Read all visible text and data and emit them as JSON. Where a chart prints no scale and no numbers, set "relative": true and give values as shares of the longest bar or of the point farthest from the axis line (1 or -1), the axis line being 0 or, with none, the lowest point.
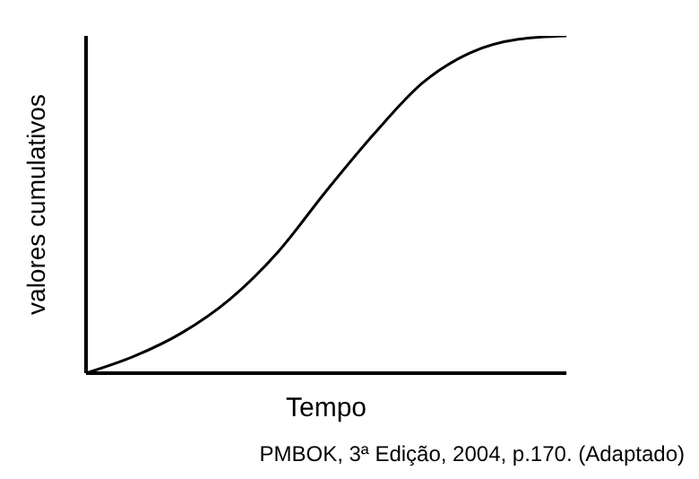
{
  "chart_data": {
    "type": "line",
    "relative": true,
    "xlabel": "Tempo",
    "ylabel": "valores cumulativos",
    "categories": [
      null,
      null,
      null,
      null,
      null,
      null,
      null,
      null,
      null,
      null,
      null
    ],
    "series": [
      {
        "color": "#000000",
        "values": [
          0,
          0.05,
          0.12,
          0.22,
          0.36,
          0.54,
          0.71,
          0.86,
          0.95,
          0.99,
          1
        ]
      }
    ],
    "marker": "none",
    "annotations": [
      "PMBOK, 3ª Edição, 2004, p.170. (Adaptado)"
    ]
  }
}
